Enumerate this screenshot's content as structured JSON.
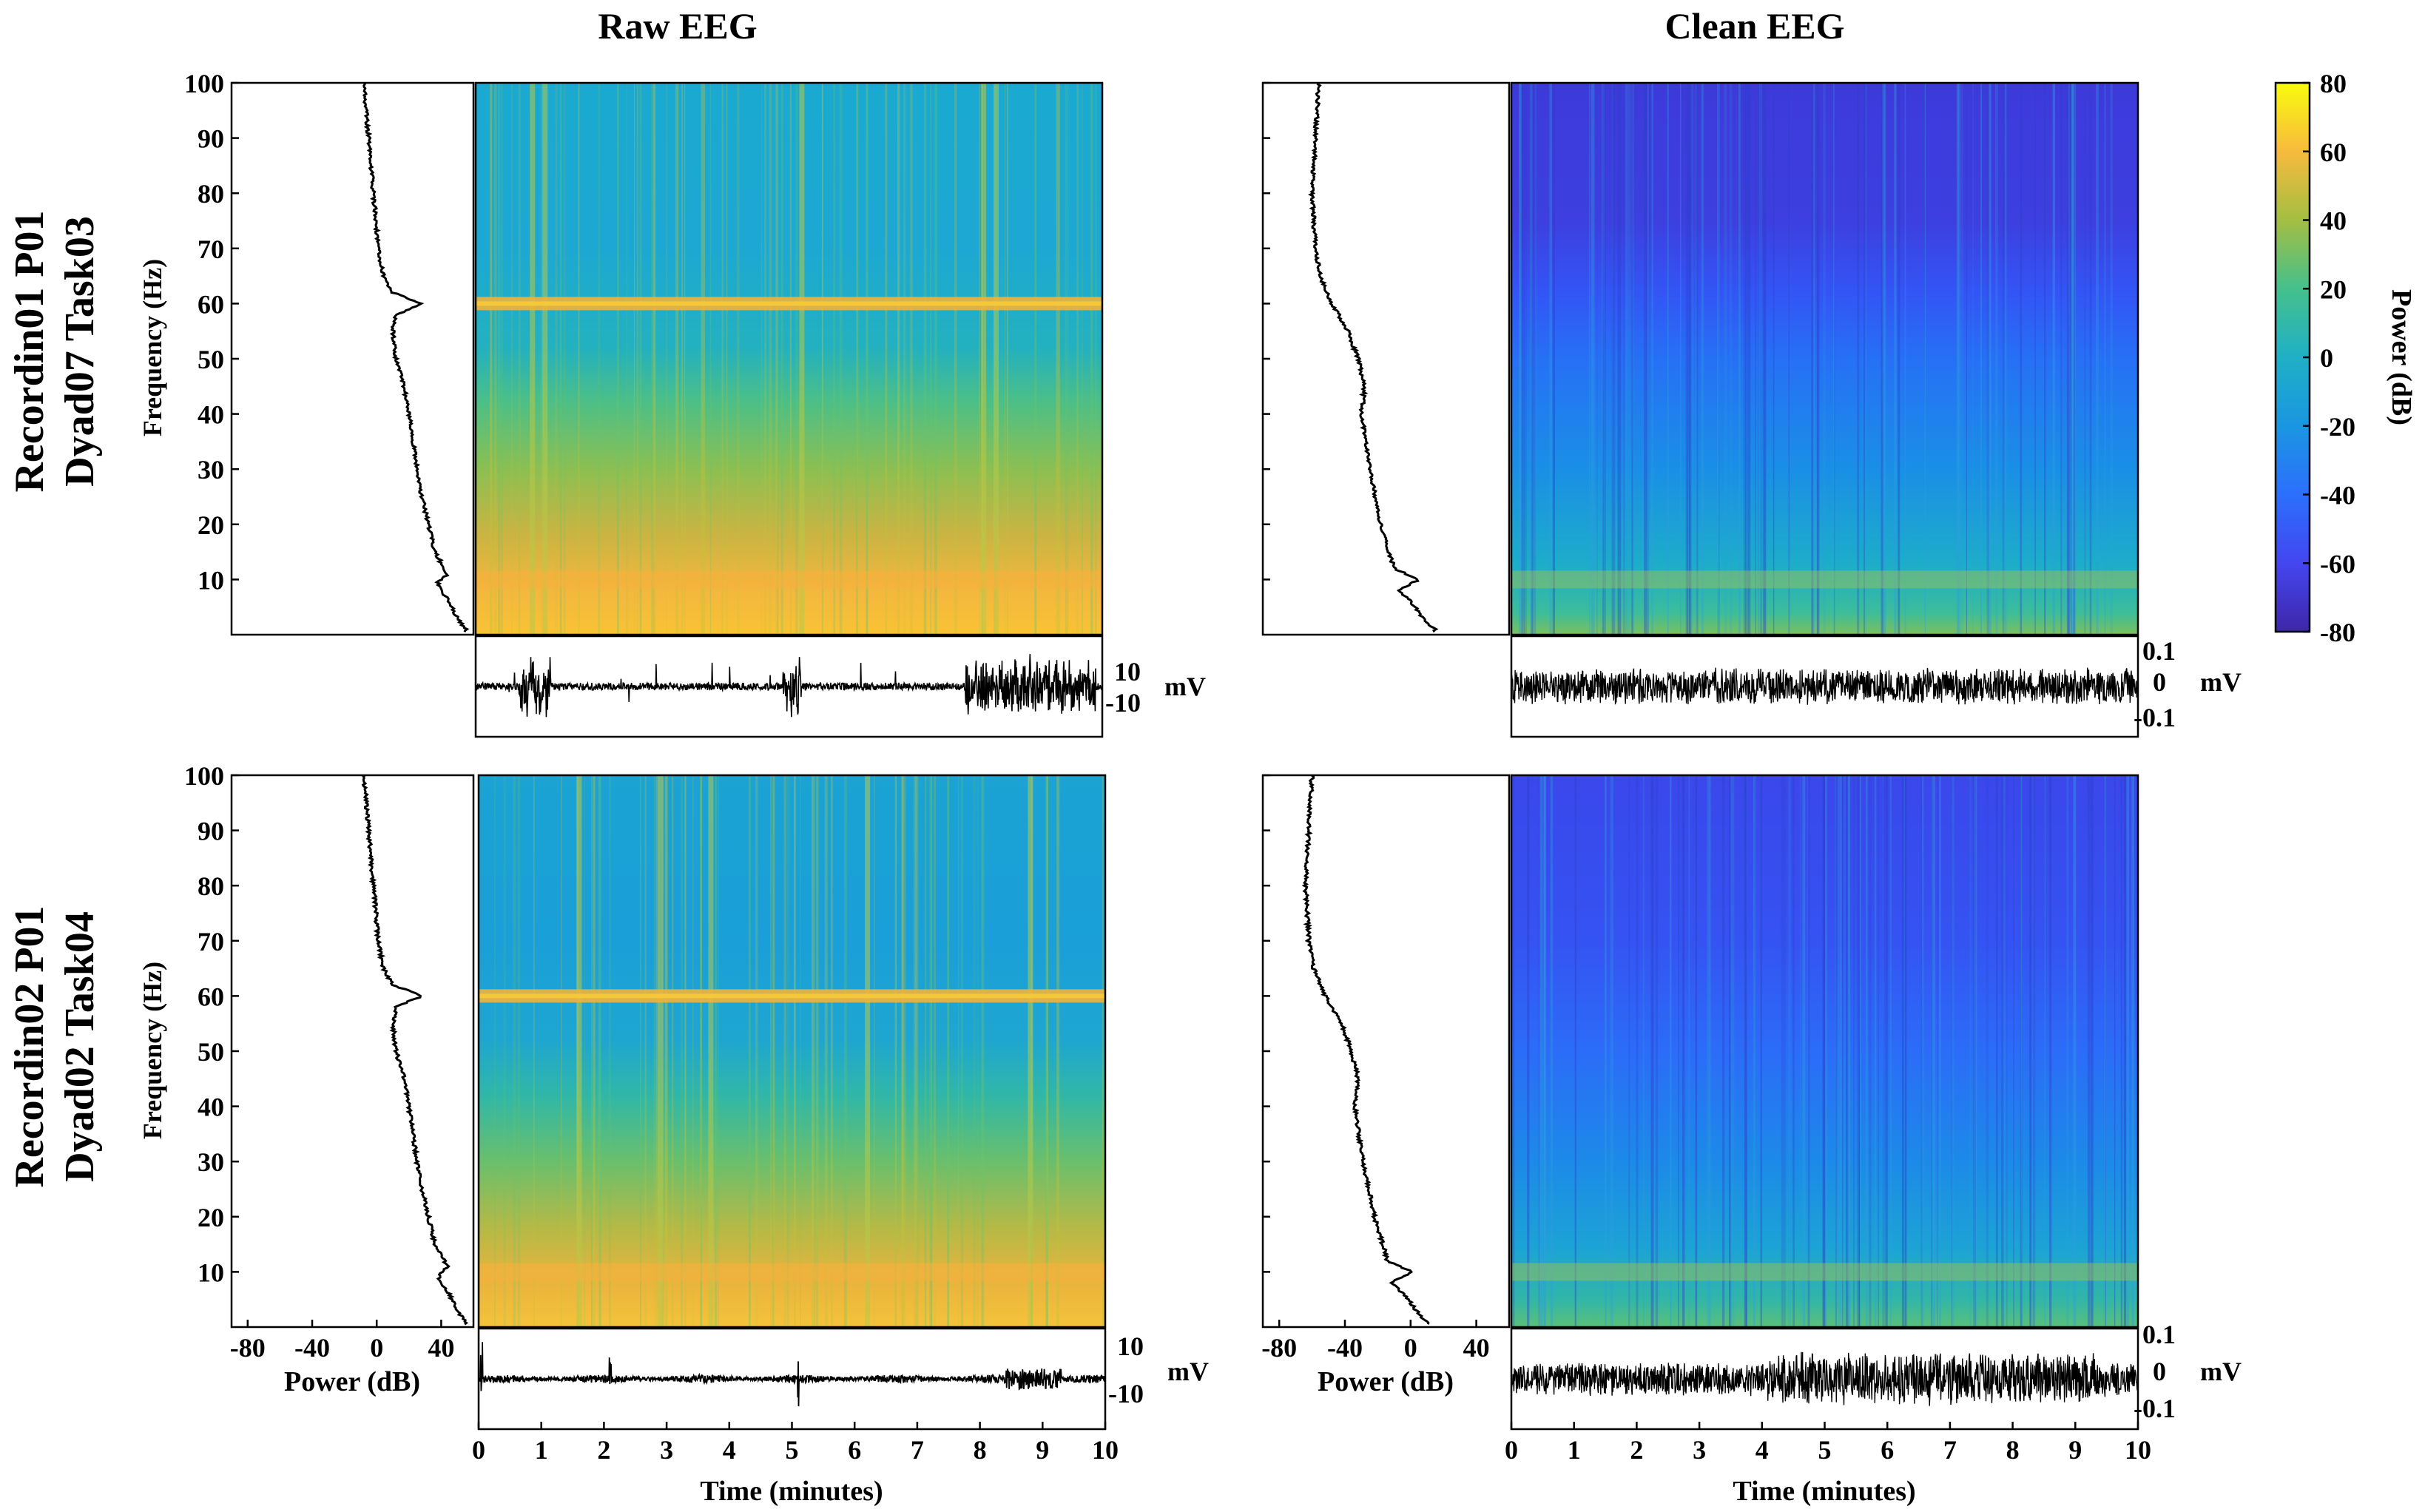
{
  "chart_data": {
    "type": "heatmap",
    "columns": [
      {
        "title": "Raw EEG",
        "signal_ticks": [
          "10",
          "-10"
        ],
        "signal_unit": "mV"
      },
      {
        "title": "Clean EEG",
        "signal_ticks": [
          "0.1",
          "0",
          "-0.1"
        ],
        "signal_unit": "mV"
      }
    ],
    "rows": [
      {
        "label_line1": "Recordin01 P01",
        "label_line2": "Dyad07 Task03"
      },
      {
        "label_line1": "Recordin02 P01",
        "label_line2": "Dyad02 Task04"
      }
    ],
    "panels": [
      {
        "column": "Raw EEG",
        "row": 1,
        "line_noise_hz": 60,
        "vertical_artifacts_min": [
          0.9,
          1.1,
          5.2,
          8.1,
          8.3
        ],
        "signal_range_mV": [
          -10,
          10
        ]
      },
      {
        "column": "Clean EEG",
        "row": 1,
        "line_noise_hz": null,
        "signal_range_mV": [
          -0.1,
          0.1
        ]
      },
      {
        "column": "Raw EEG",
        "row": 2,
        "line_noise_hz": 60,
        "vertical_artifacts_min": [
          1.6,
          2.9,
          3.7,
          6.2,
          8.8
        ],
        "signal_range_mV": [
          -10,
          10
        ]
      },
      {
        "column": "Clean EEG",
        "row": 2,
        "line_noise_hz": null,
        "signal_range_mV": [
          -0.1,
          0.1
        ]
      }
    ],
    "psd_profiles": {
      "raw": {
        "frequency_hz": [
          1,
          3,
          6,
          8,
          9.5,
          11,
          15,
          20,
          25,
          30,
          40,
          45,
          50,
          55,
          58,
          60,
          62,
          65,
          70,
          80,
          90,
          100
        ],
        "power_db": [
          55,
          50,
          45,
          40,
          38,
          44,
          36,
          32,
          28,
          25,
          20,
          17,
          12,
          10,
          12,
          28,
          10,
          4,
          1,
          -2,
          -5,
          -8
        ]
      },
      "clean": {
        "frequency_hz": [
          1,
          2,
          4,
          6,
          8,
          10,
          12,
          20,
          30,
          40,
          45,
          50,
          55,
          60,
          65,
          70,
          80,
          90,
          100
        ],
        "power_db": [
          15,
          10,
          5,
          0,
          -8,
          5,
          -10,
          -18,
          -25,
          -30,
          -28,
          -32,
          -38,
          -48,
          -55,
          -58,
          -60,
          -58,
          -56
        ]
      }
    },
    "frequency_axis": {
      "label": "Frequency (Hz)",
      "ticks": [
        "10",
        "20",
        "30",
        "40",
        "50",
        "60",
        "70",
        "80",
        "90",
        "100"
      ],
      "range": [
        0,
        100
      ]
    },
    "power_axis": {
      "label": "Power (dB)",
      "ticks": [
        "-80",
        "-40",
        "0",
        "40"
      ],
      "range": [
        -90,
        60
      ]
    },
    "time_axis": {
      "label": "Time (minutes)",
      "ticks": [
        "0",
        "1",
        "2",
        "3",
        "4",
        "5",
        "6",
        "7",
        "8",
        "9",
        "10"
      ],
      "range": [
        0,
        10
      ]
    },
    "colorbar": {
      "label": "Power (dB)",
      "ticks": [
        "80",
        "60",
        "40",
        "20",
        "0",
        "-20",
        "-40",
        "-60",
        "-80"
      ],
      "range": [
        -80,
        80
      ],
      "colormap": "parula"
    },
    "colors": {
      "parula_low": "#3e26a8",
      "parula_mid": "#1fa9c9",
      "parula_high": "#f9fb0e",
      "line": "#000000"
    }
  }
}
